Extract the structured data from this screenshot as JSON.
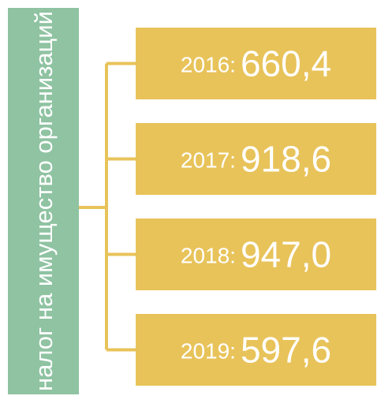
{
  "label": "налог на имущество организаций",
  "items": [
    {
      "year": "2016:",
      "value": "660,4"
    },
    {
      "year": "2017:",
      "value": "918,6"
    },
    {
      "year": "2018:",
      "value": "947,0"
    },
    {
      "year": "2019:",
      "value": "597,6"
    }
  ]
}
